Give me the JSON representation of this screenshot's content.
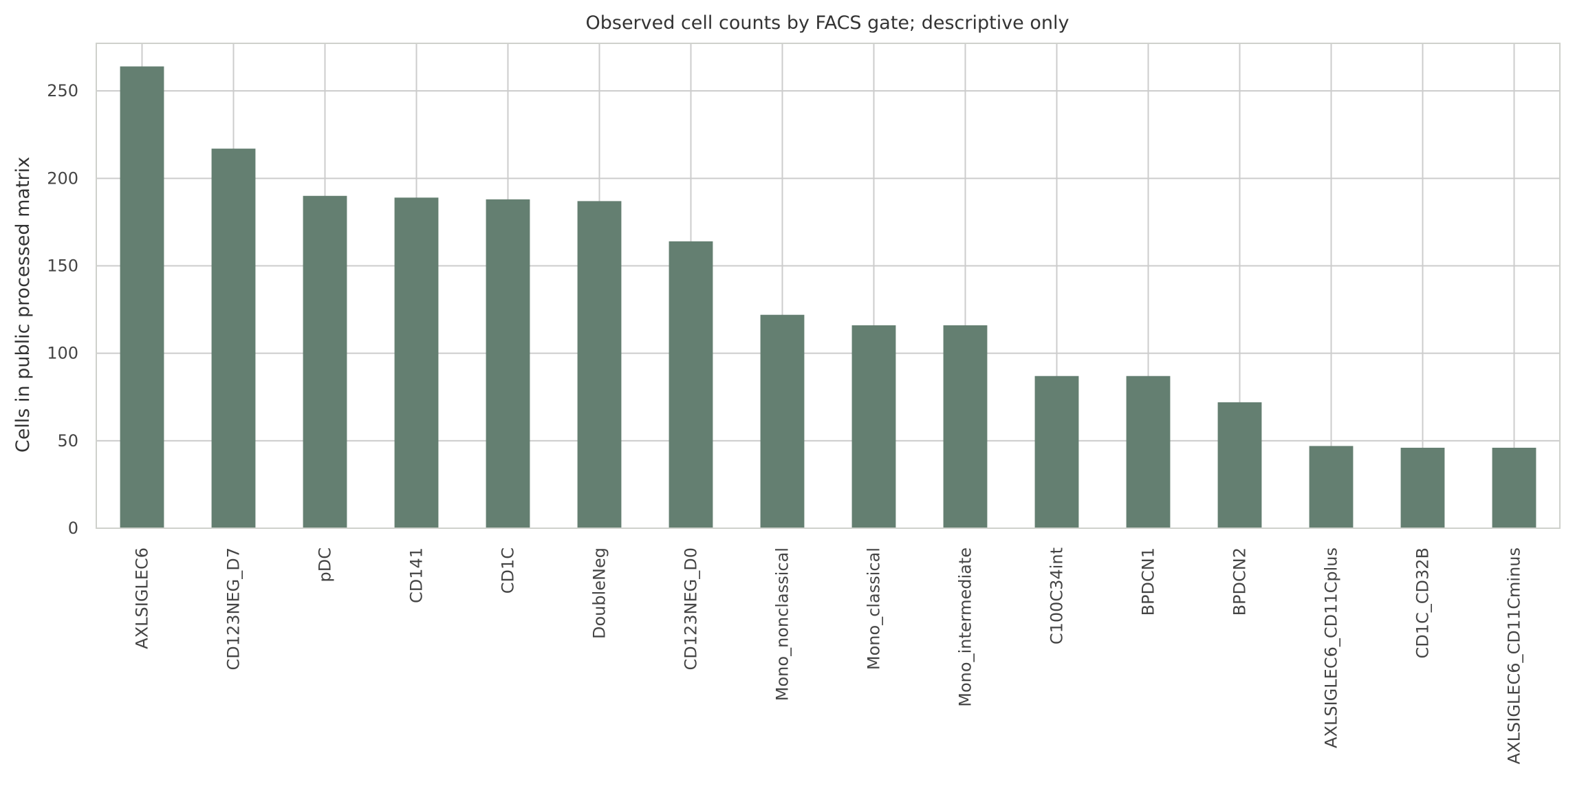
{
  "chart_data": {
    "type": "bar",
    "title": "Observed cell counts by FACS gate; descriptive only",
    "xlabel": "",
    "ylabel": "Cells in public processed matrix",
    "categories": [
      "AXLSIGLEC6",
      "CD123NEG_D7",
      "pDC",
      "CD141",
      "CD1C",
      "DoubleNeg",
      "CD123NEG_D0",
      "Mono_nonclassical",
      "Mono_classical",
      "Mono_intermediate",
      "C100C34int",
      "BPDCN1",
      "BPDCN2",
      "AXLSIGLEC6_CD11Cplus",
      "CD1C_CD32B",
      "AXLSIGLEC6_CD11Cminus"
    ],
    "values": [
      264,
      217,
      190,
      189,
      188,
      187,
      164,
      122,
      116,
      116,
      87,
      87,
      72,
      47,
      46,
      46
    ],
    "ylim": [
      0,
      277.2
    ],
    "yticks": [
      0,
      50,
      100,
      150,
      200,
      250
    ],
    "grid": true,
    "legend": "none",
    "bar_color": "#647f71"
  }
}
